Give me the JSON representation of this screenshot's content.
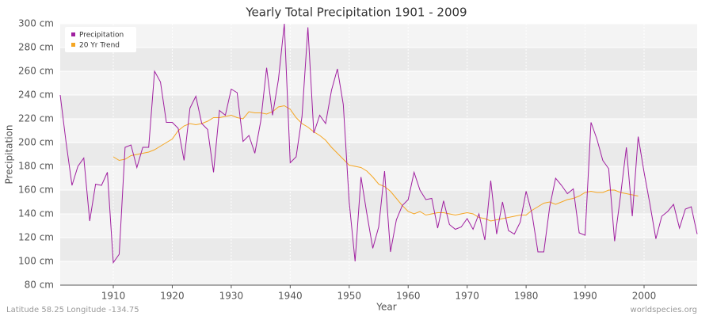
{
  "chart_data": {
    "type": "line",
    "title": "Yearly Total Precipitation 1901 - 2009",
    "x_label": "Year",
    "y_label": "Precipitation",
    "footer_left": "Latitude 58.25 Longitude -134.75",
    "footer_right": "worldspecies.org",
    "legend": "top-left",
    "grid": true,
    "x": [
      1901,
      1902,
      1903,
      1904,
      1905,
      1906,
      1907,
      1908,
      1909,
      1910,
      1911,
      1912,
      1913,
      1914,
      1915,
      1916,
      1917,
      1918,
      1919,
      1920,
      1921,
      1922,
      1923,
      1924,
      1925,
      1926,
      1927,
      1928,
      1929,
      1930,
      1931,
      1932,
      1933,
      1934,
      1935,
      1936,
      1937,
      1938,
      1939,
      1940,
      1941,
      1942,
      1943,
      1944,
      1945,
      1946,
      1947,
      1948,
      1949,
      1950,
      1951,
      1952,
      1953,
      1954,
      1955,
      1956,
      1957,
      1958,
      1959,
      1960,
      1961,
      1962,
      1963,
      1964,
      1965,
      1966,
      1967,
      1968,
      1969,
      1970,
      1971,
      1972,
      1973,
      1974,
      1975,
      1976,
      1977,
      1978,
      1979,
      1980,
      1981,
      1982,
      1983,
      1984,
      1985,
      1986,
      1987,
      1988,
      1989,
      1990,
      1991,
      1992,
      1993,
      1994,
      1995,
      1996,
      1997,
      1998,
      1999,
      2000,
      2001,
      2002,
      2003,
      2004,
      2005,
      2006,
      2007,
      2008,
      2009
    ],
    "series": [
      {
        "name": "Precipitation",
        "color": "#a020a0",
        "values": [
          240,
          200,
          164,
          180,
          187,
          134,
          165,
          164,
          175,
          99,
          106,
          196,
          198,
          179,
          196,
          196,
          260,
          251,
          217,
          217,
          212,
          185,
          229,
          239,
          216,
          211,
          175,
          227,
          223,
          245,
          242,
          201,
          206,
          191,
          218,
          263,
          223,
          253,
          300,
          183,
          188,
          222,
          297,
          208,
          223,
          216,
          244,
          262,
          232,
          150,
          100,
          171,
          140,
          111,
          129,
          176,
          108,
          135,
          147,
          152,
          175,
          160,
          152,
          153,
          128,
          151,
          131,
          127,
          129,
          136,
          127,
          140,
          118,
          168,
          123,
          150,
          126,
          123,
          133,
          159,
          140,
          108,
          108,
          146,
          170,
          164,
          157,
          161,
          124,
          122,
          217,
          203,
          185,
          178,
          117,
          155,
          196,
          138,
          205,
          175,
          148,
          119,
          138,
          142,
          148,
          128,
          144,
          146,
          123
        ]
      },
      {
        "name": "20 Yr Trend",
        "color": "#f5a623",
        "values": [
          null,
          null,
          null,
          null,
          null,
          null,
          null,
          null,
          null,
          188,
          185,
          186,
          189,
          190,
          191,
          192,
          194,
          197,
          200,
          203,
          210,
          214,
          216,
          215,
          216,
          218,
          221,
          221,
          222,
          223,
          221,
          220,
          226,
          225,
          225,
          224,
          226,
          230,
          231,
          228,
          221,
          216,
          213,
          209,
          206,
          202,
          196,
          191,
          186,
          181,
          180,
          179,
          176,
          171,
          165,
          163,
          159,
          153,
          147,
          142,
          140,
          142,
          139,
          140,
          141,
          141,
          140,
          139,
          140,
          141,
          140,
          137,
          136,
          134,
          135,
          136,
          137,
          138,
          139,
          139,
          143,
          146,
          149,
          150,
          148,
          150,
          152,
          153,
          155,
          158,
          159,
          158,
          158,
          160,
          160,
          158,
          157,
          156,
          155,
          null,
          null,
          null,
          null,
          null,
          null,
          null,
          null,
          null,
          null
        ]
      }
    ],
    "xlim": [
      1901,
      2009
    ],
    "xticks": [
      1910,
      1920,
      1930,
      1940,
      1950,
      1960,
      1970,
      1980,
      1990,
      2000
    ],
    "ylim": [
      80,
      300
    ],
    "yticks": [
      {
        "value": 80,
        "label": "80 cm"
      },
      {
        "value": 100,
        "label": "100 cm"
      },
      {
        "value": 120,
        "label": "120 cm"
      },
      {
        "value": 140,
        "label": "140 cm"
      },
      {
        "value": 160,
        "label": "160 cm"
      },
      {
        "value": 180,
        "label": "180 cm"
      },
      {
        "value": 200,
        "label": "200 cm"
      },
      {
        "value": 220,
        "label": "220 cm"
      },
      {
        "value": 240,
        "label": "240 cm"
      },
      {
        "value": 260,
        "label": "260 cm"
      },
      {
        "value": 280,
        "label": "280 cm"
      },
      {
        "value": 300,
        "label": "300 cm"
      }
    ]
  }
}
